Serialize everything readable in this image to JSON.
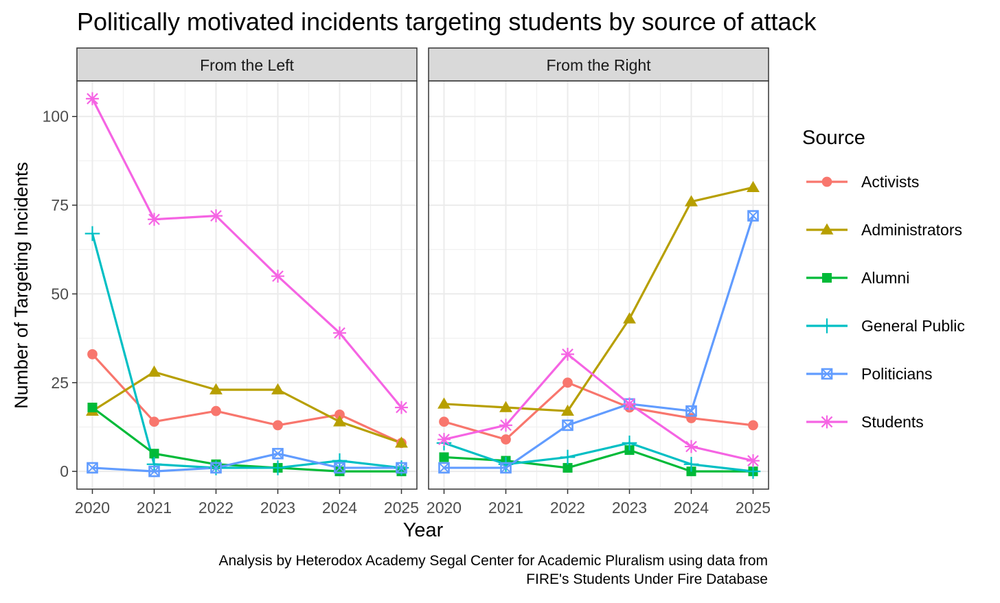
{
  "chart_data": {
    "type": "line",
    "title": "Politically motivated incidents targeting students by source of attack",
    "xlabel": "Year",
    "ylabel": "Number of Targeting Incidents",
    "caption_lines": [
      "Analysis by Heterodox Academy Segal Center for Academic Pluralism using data from",
      "FIRE's Students Under Fire Database"
    ],
    "legend_title": "Source",
    "legend_position": "right",
    "x": [
      2020,
      2021,
      2022,
      2023,
      2024,
      2025
    ],
    "x_tick_labels": [
      "2020",
      "2021",
      "2022",
      "2023",
      "2024",
      "2025"
    ],
    "ylim": [
      -5,
      110
    ],
    "y_ticks": [
      0,
      25,
      50,
      75,
      100
    ],
    "y_tick_labels": [
      "0",
      "25",
      "50",
      "75",
      "100"
    ],
    "grid": true,
    "series_styles": [
      {
        "name": "Activists",
        "color": "#F8766D",
        "marker": "circle"
      },
      {
        "name": "Administrators",
        "color": "#B79F00",
        "marker": "triangle"
      },
      {
        "name": "Alumni",
        "color": "#00BA38",
        "marker": "square"
      },
      {
        "name": "General Public",
        "color": "#00BFC4",
        "marker": "plus"
      },
      {
        "name": "Politicians",
        "color": "#619CFF",
        "marker": "boxcross"
      },
      {
        "name": "Students",
        "color": "#F564E3",
        "marker": "asterisk"
      }
    ],
    "panels": [
      {
        "label": "From the Left",
        "series": [
          {
            "name": "Activists",
            "values": [
              33,
              14,
              17,
              13,
              16,
              8
            ]
          },
          {
            "name": "Administrators",
            "values": [
              17,
              28,
              23,
              23,
              14,
              8
            ]
          },
          {
            "name": "Alumni",
            "values": [
              18,
              5,
              2,
              1,
              0,
              0
            ]
          },
          {
            "name": "General Public",
            "values": [
              67,
              2,
              1,
              1,
              3,
              1
            ]
          },
          {
            "name": "Politicians",
            "values": [
              1,
              0,
              1,
              5,
              1,
              1
            ]
          },
          {
            "name": "Students",
            "values": [
              105,
              71,
              72,
              55,
              39,
              18
            ]
          }
        ]
      },
      {
        "label": "From the Right",
        "series": [
          {
            "name": "Activists",
            "values": [
              14,
              9,
              25,
              18,
              15,
              13
            ]
          },
          {
            "name": "Administrators",
            "values": [
              19,
              18,
              17,
              43,
              76,
              80
            ]
          },
          {
            "name": "Alumni",
            "values": [
              4,
              3,
              1,
              6,
              0,
              0
            ]
          },
          {
            "name": "General Public",
            "values": [
              8,
              2,
              4,
              8,
              2,
              0
            ]
          },
          {
            "name": "Politicians",
            "values": [
              1,
              1,
              13,
              19,
              17,
              72
            ]
          },
          {
            "name": "Students",
            "values": [
              9,
              13,
              33,
              19,
              7,
              3
            ]
          }
        ]
      }
    ]
  }
}
